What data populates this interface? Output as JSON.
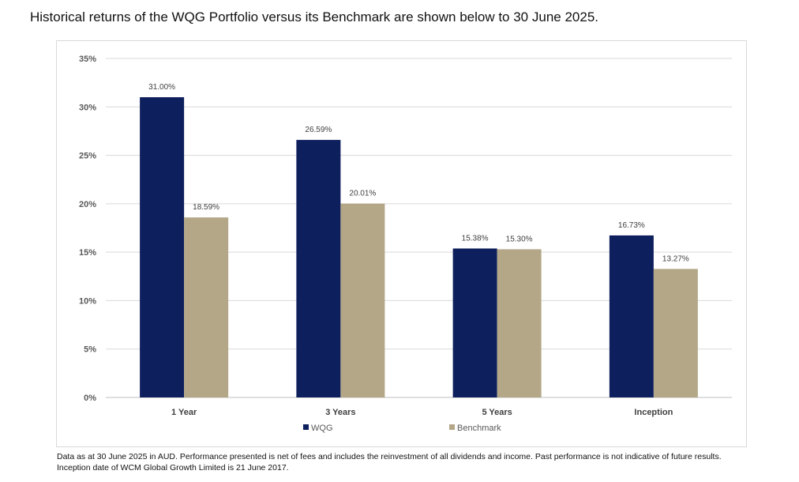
{
  "page": {
    "heading": "Historical returns of the WQG Portfolio versus its Benchmark are shown below to 30 June 2025.",
    "footnote_line1": "Data as at 30 June 2025 in AUD. Performance presented is net of fees and includes the reinvestment of all dividends and income. Past performance is not indicative of future results.",
    "footnote_line2": "Inception date of WCM Global Growth Limited is 21 June 2017."
  },
  "colors": {
    "wqg": "#0d1f5c",
    "benchmark": "#b3a788",
    "grid": "#d9d9d9",
    "axis_text": "#595959"
  },
  "chart_data": {
    "type": "bar",
    "title": "",
    "xlabel": "",
    "ylabel": "",
    "categories": [
      "1 Year",
      "3 Years",
      "5 Years",
      "Inception"
    ],
    "series": [
      {
        "name": "WQG",
        "values": [
          31.0,
          26.59,
          15.38,
          16.73
        ],
        "labels": [
          "31.00%",
          "26.59%",
          "15.38%",
          "16.73%"
        ]
      },
      {
        "name": "Benchmark",
        "values": [
          18.59,
          20.01,
          15.3,
          13.27
        ],
        "labels": [
          "18.59%",
          "20.01%",
          "15.30%",
          "13.27%"
        ]
      }
    ],
    "ylim": [
      0,
      35
    ],
    "yticks": [
      0,
      5,
      10,
      15,
      20,
      25,
      30,
      35
    ],
    "ytick_labels": [
      "0%",
      "5%",
      "10%",
      "15%",
      "20%",
      "25%",
      "30%",
      "35%"
    ],
    "grid": true,
    "legend_position": "bottom"
  }
}
